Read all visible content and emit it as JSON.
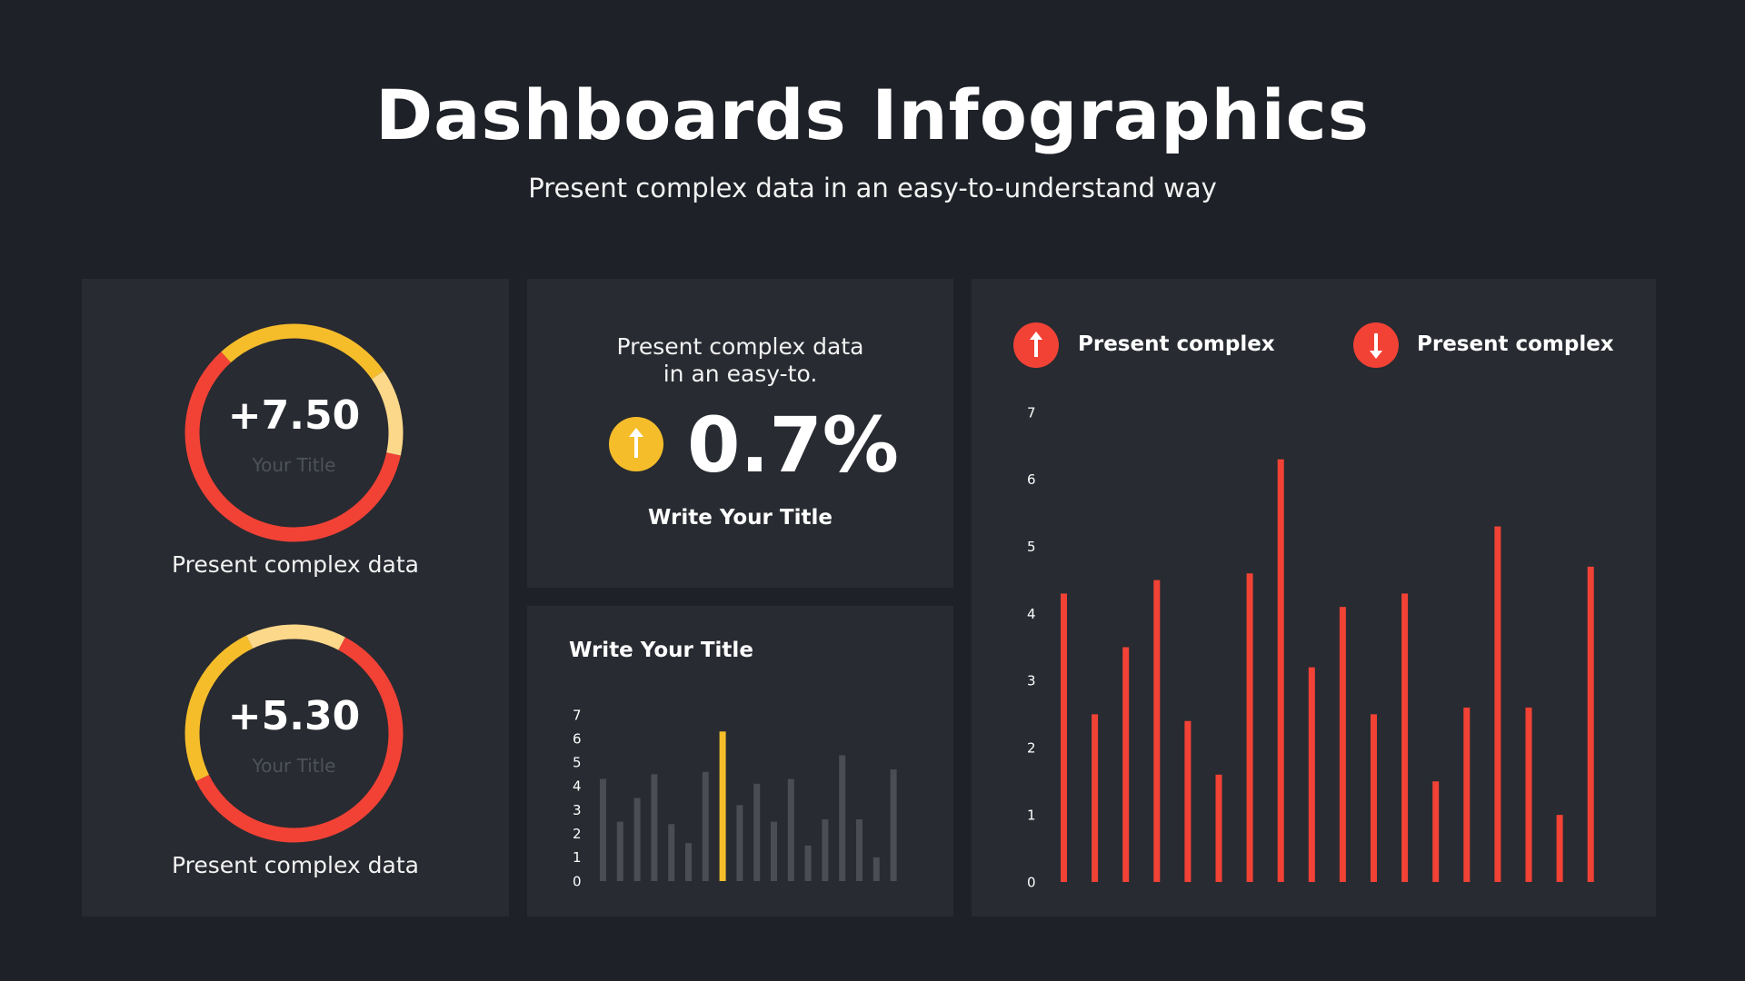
{
  "header": {
    "title": "Dashboards Infographics",
    "subtitle": "Present complex data in an easy-to-understand way"
  },
  "colors": {
    "background": "#1e2127",
    "panel": "#282b31",
    "red": "#f24236",
    "yellow": "#f6bd2b",
    "light_yellow": "#fcd88a",
    "gray_bar": "#4a4d53"
  },
  "donuts": [
    {
      "value": "+7.50",
      "subtitle": "Your Title",
      "caption": "Present complex data",
      "segments": [
        {
          "color": "#f24236",
          "fraction": 0.6
        },
        {
          "color": "#f6bd2b",
          "fraction": 0.27
        },
        {
          "color": "#fcd88a",
          "fraction": 0.13
        }
      ]
    },
    {
      "value": "+5.30",
      "subtitle": "Your Title",
      "caption": "Present complex data",
      "segments": [
        {
          "color": "#f24236",
          "fraction": 0.6
        },
        {
          "color": "#f6bd2b",
          "fraction": 0.25
        },
        {
          "color": "#fcd88a",
          "fraction": 0.15
        }
      ]
    }
  ],
  "stat": {
    "text_line1": "Present complex data",
    "text_line2": "in an easy-to.",
    "icon": "arrow-up-icon",
    "value": "0.7%",
    "label": "Write Your Title"
  },
  "legend": [
    {
      "icon": "arrow-up-icon",
      "label": "Present complex"
    },
    {
      "icon": "arrow-down-icon",
      "label": "Present complex"
    }
  ],
  "chart_data": [
    {
      "type": "bar",
      "title": "Write Your Title",
      "ylim": [
        0,
        7
      ],
      "yticks": [
        "0",
        "1",
        "2",
        "3",
        "4",
        "5",
        "6",
        "7"
      ],
      "values": [
        4.3,
        2.5,
        3.5,
        4.5,
        2.4,
        1.6,
        4.6,
        6.3,
        3.2,
        4.1,
        2.5,
        4.3,
        1.5,
        2.6,
        5.3,
        2.6,
        1.0,
        4.7
      ],
      "highlight_index": 7,
      "bar_color": "#4a4d53",
      "highlight_color": "#f6bd2b"
    },
    {
      "type": "bar",
      "title": "",
      "ylim": [
        0,
        7
      ],
      "yticks": [
        "0",
        "1",
        "2",
        "3",
        "4",
        "5",
        "6",
        "7"
      ],
      "values": [
        4.3,
        2.5,
        3.5,
        4.5,
        2.4,
        1.6,
        4.6,
        6.3,
        3.2,
        4.1,
        2.5,
        4.3,
        1.5,
        2.6,
        5.3,
        2.6,
        1.0,
        4.7
      ],
      "bar_color": "#f24236"
    }
  ]
}
